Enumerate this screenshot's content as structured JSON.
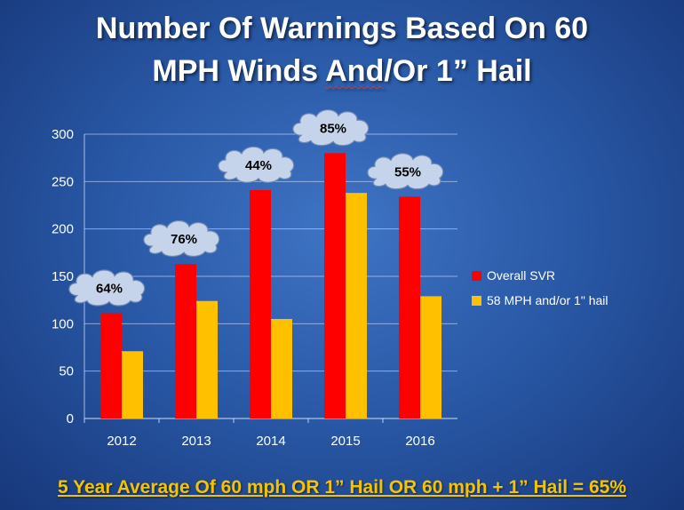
{
  "title_line1": "Number Of Warnings Based On 60",
  "title_line2_pre": "MPH Winds ",
  "title_line2_word": "And",
  "title_line2_post": "/Or 1” Hail",
  "footer": "5 Year Average Of 60 mph OR 1” Hail OR 60 mph + 1” Hail = 65%",
  "colors": {
    "overall": "#ff0000",
    "hail": "#ffc000",
    "axis_text": "#ffffff",
    "footer": "#f5c400"
  },
  "chart_data": {
    "type": "bar",
    "title": "Number Of Warnings Based On 60 MPH Winds And/Or 1” Hail",
    "categories": [
      "2012",
      "2013",
      "2014",
      "2015",
      "2016"
    ],
    "series": [
      {
        "name": "Overall SVR",
        "values": [
          111,
          163,
          241,
          280,
          234
        ]
      },
      {
        "name": "58 MPH and/or 1\" hail",
        "values": [
          71,
          124,
          105,
          238,
          129
        ]
      }
    ],
    "annotations": [
      "64%",
      "76%",
      "44%",
      "85%",
      "55%"
    ],
    "yticks": [
      "0",
      "50",
      "100",
      "150",
      "200",
      "250",
      "300"
    ],
    "ylim": [
      0,
      300
    ],
    "legend_position": "right",
    "grid": true
  }
}
